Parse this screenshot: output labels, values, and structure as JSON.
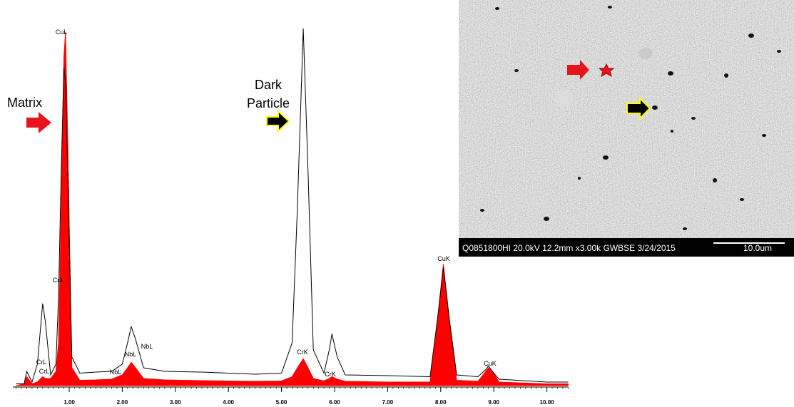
{
  "chart_data": {
    "type": "line",
    "x": [
      0,
      0.15,
      0.2,
      0.3,
      0.4,
      0.5,
      0.55,
      0.65,
      0.75,
      0.8,
      0.85,
      0.9,
      0.93,
      0.97,
      1.05,
      1.2,
      1.5,
      1.8,
      2.0,
      2.1,
      2.17,
      2.25,
      2.4,
      2.8,
      3.5,
      4.5,
      5.0,
      5.2,
      5.3,
      5.41,
      5.5,
      5.6,
      5.8,
      5.9,
      5.95,
      6.05,
      6.2,
      7.0,
      7.8,
      7.95,
      8.05,
      8.15,
      8.3,
      8.7,
      8.85,
      8.9,
      8.97,
      9.1,
      10,
      10.4
    ],
    "series": [
      {
        "name": "Matrix",
        "color": "#ff0000",
        "fill": true,
        "values": [
          0,
          0.5,
          2.5,
          0.5,
          1,
          2.5,
          2,
          2,
          4,
          12,
          50,
          92,
          99,
          70,
          5,
          1.5,
          1.6,
          1.8,
          3,
          5,
          6.5,
          5,
          2,
          1.6,
          1.4,
          1.2,
          1.3,
          2.5,
          5,
          7.5,
          5,
          2,
          1.3,
          2,
          2.5,
          1.8,
          1.2,
          1,
          1,
          20,
          34,
          20,
          1.5,
          1.2,
          4,
          5,
          4,
          1,
          0.5,
          0.5
        ]
      },
      {
        "name": "Dark Particle",
        "color": "#000000",
        "fill": false,
        "values": [
          0.5,
          0.5,
          4,
          1,
          6,
          23,
          18,
          3,
          6,
          25,
          60,
          89,
          85,
          60,
          8,
          3.5,
          3.8,
          4,
          6,
          12,
          16.5,
          13,
          5,
          4,
          3.8,
          3.2,
          3.5,
          12,
          50,
          100,
          60,
          10,
          3.5,
          10,
          14.5,
          8,
          3,
          2.8,
          2.5,
          20,
          33,
          20,
          3,
          2.5,
          4.5,
          5.5,
          4,
          1.8,
          1,
          1
        ]
      }
    ],
    "xlim": [
      0,
      10.4
    ],
    "ylim": [
      0,
      100
    ],
    "xticks": [
      {
        "value": 1,
        "label": "1.00"
      },
      {
        "value": 2,
        "label": "2.00"
      },
      {
        "value": 3,
        "label": "3.00"
      },
      {
        "value": 4,
        "label": "4.00"
      },
      {
        "value": 5,
        "label": "5.00"
      },
      {
        "value": 6,
        "label": "6.00"
      },
      {
        "value": 7,
        "label": "7.00"
      },
      {
        "value": 8,
        "label": "8.00"
      },
      {
        "value": 9,
        "label": "9.00"
      },
      {
        "value": 10,
        "label": "10.00"
      }
    ],
    "peak_labels": [
      "CuL",
      "CuL",
      "CrL",
      "CrL",
      "NbL",
      "NbL",
      "NbL",
      "CrK",
      "CrK",
      "CuK",
      "CuK"
    ]
  },
  "sem_image": {
    "caption": "Q0851800HI 20.0kV 12.2mm x3.00k GWBSE 3/24/2015",
    "scale_label": "10.0um"
  }
}
